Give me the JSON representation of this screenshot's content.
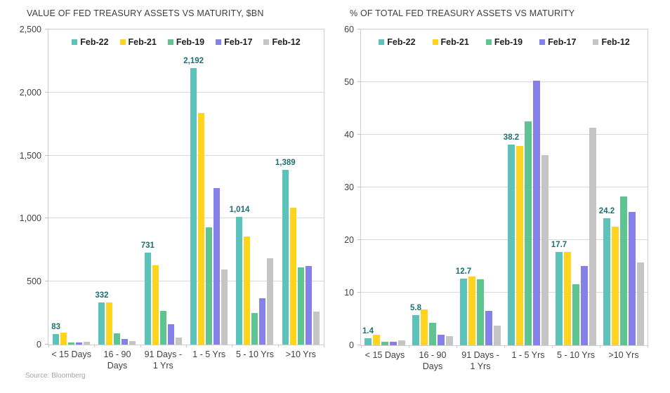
{
  "page": {
    "background": "#ffffff",
    "source_note": "Source: Bloomberg"
  },
  "colors": {
    "data_label": "#1d6f72",
    "axis_text": "#404040",
    "gridline": "#d9d9d9",
    "plot_border": "#cfcfcf",
    "legend_text": "#212121",
    "source_text": "#a3a3a3"
  },
  "chart_data": [
    {
      "type": "bar",
      "title": "VALUE OF FED TREASURY ASSETS VS MATURITY, $BN",
      "ylabel": "$BN",
      "ylim": [
        0,
        2500
      ],
      "grid": true,
      "legend_position": "top-center",
      "yticks": [
        {
          "value": 0,
          "label": "0"
        },
        {
          "value": 500,
          "label": "500"
        },
        {
          "value": 1000,
          "label": "1,000"
        },
        {
          "value": 1500,
          "label": "1,500"
        },
        {
          "value": 2000,
          "label": "2,000"
        },
        {
          "value": 2500,
          "label": "2,500"
        }
      ],
      "categories": [
        "< 15 Days",
        "16 - 90 Days",
        "91 Days - 1 Yrs",
        "1 - 5 Yrs",
        "5 - 10 Yrs",
        ">10 Yrs"
      ],
      "categories_wrapped": [
        [
          "< 15 Days"
        ],
        [
          "16 - 90",
          "Days"
        ],
        [
          "91 Days -",
          "1 Yrs"
        ],
        [
          "1 - 5 Yrs"
        ],
        [
          "5 - 10 Yrs"
        ],
        [
          ">10 Yrs"
        ]
      ],
      "series": [
        {
          "name": "Feb-22",
          "color": "#5cc3ba",
          "values": [
            83,
            332,
            731,
            2192,
            1014,
            1389
          ]
        },
        {
          "name": "Feb-21",
          "color": "#ffd41e",
          "values": [
            95,
            335,
            630,
            1835,
            855,
            1085
          ]
        },
        {
          "name": "Feb-19",
          "color": "#5ec492",
          "values": [
            16,
            90,
            270,
            930,
            250,
            612
          ]
        },
        {
          "name": "Feb-17",
          "color": "#8681ea",
          "values": [
            16,
            45,
            160,
            1240,
            368,
            625
          ]
        },
        {
          "name": "Feb-12",
          "color": "#c5c5c5",
          "values": [
            22,
            30,
            58,
            598,
            685,
            262
          ]
        }
      ],
      "labeled_series": "Feb-22",
      "bar_labels": [
        "83",
        "332",
        "731",
        "2,192",
        "1,014",
        "1,389"
      ]
    },
    {
      "type": "bar",
      "title": "% OF TOTAL FED TREASURY ASSETS VS MATURITY",
      "ylabel": "%",
      "ylim": [
        0,
        60
      ],
      "grid": true,
      "legend_position": "top-center",
      "yticks": [
        {
          "value": 0,
          "label": "0"
        },
        {
          "value": 10,
          "label": "10"
        },
        {
          "value": 20,
          "label": "20"
        },
        {
          "value": 30,
          "label": "30"
        },
        {
          "value": 40,
          "label": "40"
        },
        {
          "value": 50,
          "label": "50"
        },
        {
          "value": 60,
          "label": "60"
        }
      ],
      "categories": [
        "< 15 Days",
        "16 - 90 Days",
        "91 Days - 1 Yrs",
        "1 - 5 Yrs",
        "5 - 10 Yrs",
        ">10 Yrs"
      ],
      "categories_wrapped": [
        [
          "< 15 Days"
        ],
        [
          "16 - 90",
          "Days"
        ],
        [
          "91 Days -",
          "1 Yrs"
        ],
        [
          "1 - 5 Yrs"
        ],
        [
          "5 - 10 Yrs"
        ],
        [
          ">10 Yrs"
        ]
      ],
      "series": [
        {
          "name": "Feb-22",
          "color": "#5cc3ba",
          "values": [
            1.4,
            5.8,
            12.7,
            38.2,
            17.7,
            24.2
          ]
        },
        {
          "name": "Feb-21",
          "color": "#ffd41e",
          "values": [
            2.0,
            6.8,
            13.1,
            37.9,
            17.7,
            22.6
          ]
        },
        {
          "name": "Feb-19",
          "color": "#5ec492",
          "values": [
            0.7,
            4.3,
            12.5,
            42.6,
            11.6,
            28.3
          ]
        },
        {
          "name": "Feb-17",
          "color": "#8681ea",
          "values": [
            0.7,
            2.0,
            6.6,
            50.3,
            15.1,
            25.4
          ]
        },
        {
          "name": "Feb-12",
          "color": "#c5c5c5",
          "values": [
            1.0,
            1.7,
            3.8,
            36.1,
            41.3,
            15.8
          ]
        }
      ],
      "labeled_series": "Feb-22",
      "bar_labels": [
        "1.4",
        "5.8",
        "12.7",
        "38.2",
        "17.7",
        "24.2"
      ]
    }
  ]
}
